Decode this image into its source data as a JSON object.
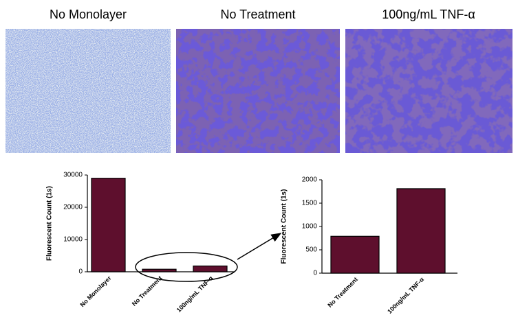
{
  "panels": [
    {
      "title": "No Monolayer"
    },
    {
      "title": "No Treatment"
    },
    {
      "title": "100ng/mL TNF-α"
    }
  ],
  "chart_data": [
    {
      "type": "bar",
      "categories": [
        "No Monolayer",
        "No Treatment",
        "100ng/mL TNF-α"
      ],
      "values": [
        29000,
        800,
        1800
      ],
      "color": "#5e0f2d",
      "y_label": "Fluorescent Count (1s)",
      "ylim": [
        0,
        30000
      ],
      "yticks": [
        0,
        10000,
        20000,
        30000
      ]
    },
    {
      "type": "bar",
      "categories": [
        "No Treatment",
        "100ng/mL TNF-α"
      ],
      "values": [
        790,
        1810
      ],
      "color": "#5e0f2d",
      "y_label": "Fluorescent Count (1s)",
      "ylim": [
        0,
        2000
      ],
      "yticks": [
        0,
        500,
        1000,
        1500,
        2000
      ]
    }
  ]
}
